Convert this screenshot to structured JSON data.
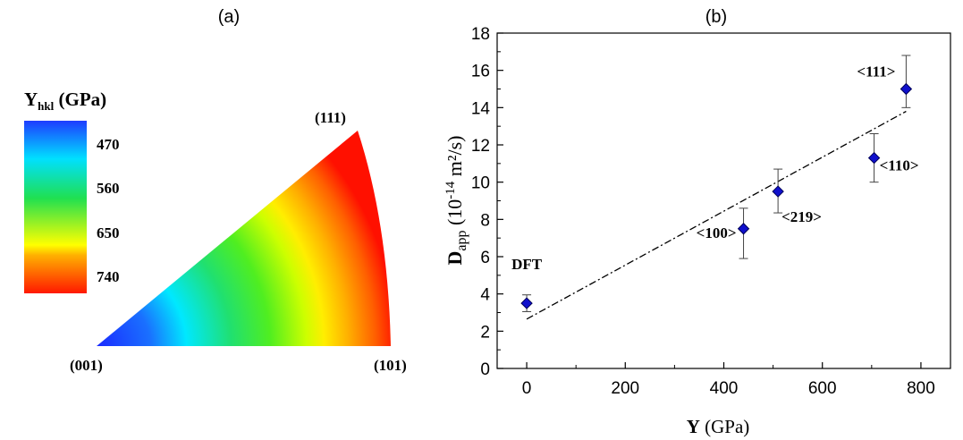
{
  "panel_a": {
    "label": "(a)",
    "colorbar": {
      "title_main": "Y",
      "title_sub": "hkl",
      "title_unit": " (GPa)",
      "ticks": [
        "470",
        "560",
        "650",
        "740"
      ],
      "colors": [
        "#1e3cff",
        "#00e0ff",
        "#20e050",
        "#ffff00",
        "#ff9900",
        "#ff1800"
      ]
    },
    "triangle": {
      "corners": [
        "(001)",
        "(101)",
        "(111)"
      ]
    }
  },
  "chart_data": {
    "type": "scatter",
    "panel_label": "(b)",
    "xlabel_main": "Y",
    "xlabel_unit": " (GPa)",
    "ylabel_main": "D",
    "ylabel_sub": "app",
    "ylabel_unit_pre": " (10",
    "ylabel_exp": "-14",
    "ylabel_unit_post": " m²/s)",
    "xlim": [
      -60,
      860
    ],
    "ylim": [
      0,
      18
    ],
    "x_ticks": [
      0,
      200,
      400,
      600,
      800
    ],
    "y_ticks": [
      0,
      2,
      4,
      6,
      8,
      10,
      12,
      14,
      16,
      18
    ],
    "marker_color": "#1010cc",
    "points": [
      {
        "label": "DFT",
        "x": 0,
        "y": 3.5,
        "err_low": 0.45,
        "err_high": 0.45
      },
      {
        "label": "<100>",
        "x": 440,
        "y": 7.5,
        "err_low": 1.6,
        "err_high": 1.1
      },
      {
        "label": "<219>",
        "x": 510,
        "y": 9.5,
        "err_low": 1.15,
        "err_high": 1.2
      },
      {
        "label": "<110>",
        "x": 705,
        "y": 11.3,
        "err_low": 1.3,
        "err_high": 1.3
      },
      {
        "label": "<111>",
        "x": 770,
        "y": 15.0,
        "err_low": 1.0,
        "err_high": 1.8
      }
    ],
    "fit_line": {
      "x": [
        0,
        770
      ],
      "y": [
        2.65,
        13.8
      ]
    }
  }
}
